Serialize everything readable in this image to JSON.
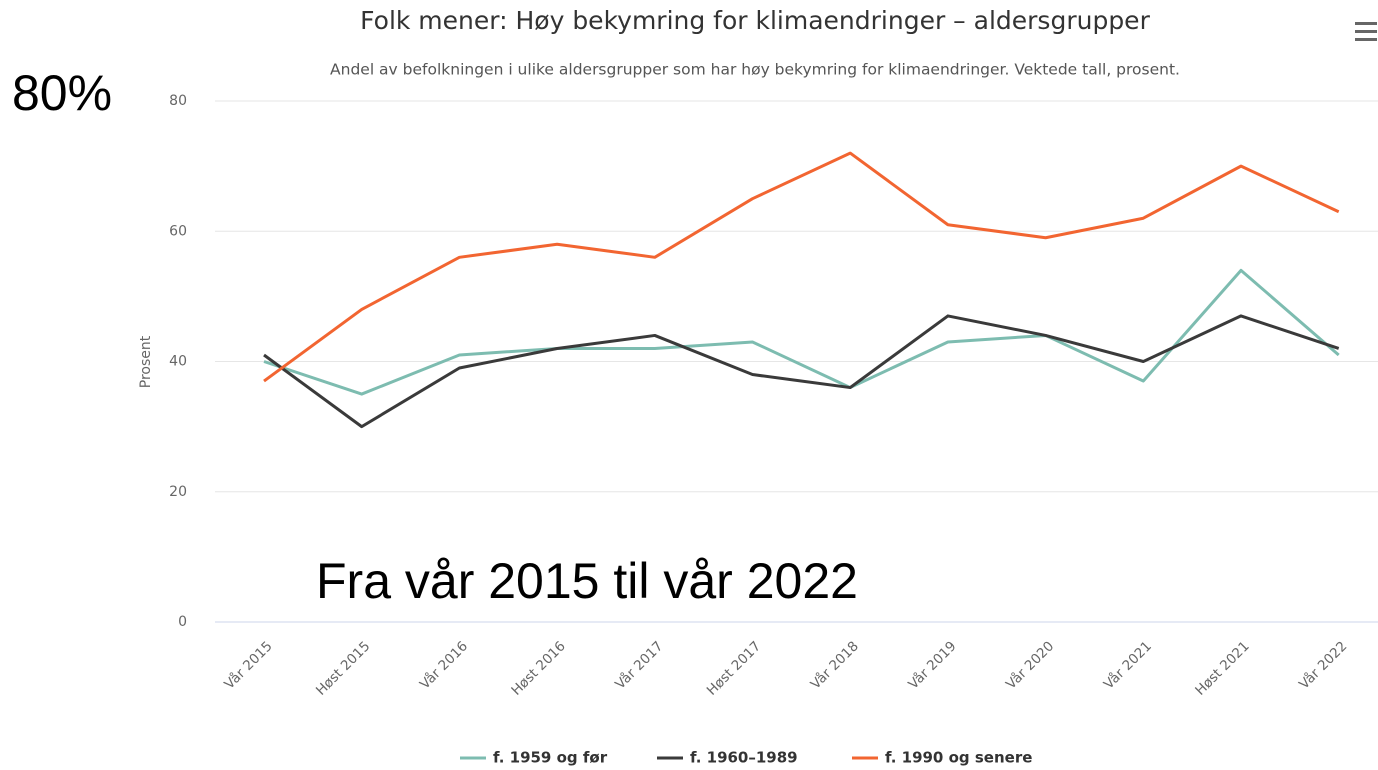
{
  "chart_data": {
    "type": "line",
    "title": "Folk mener: Høy bekymring for klimaendringer – aldersgrupper",
    "subtitle": "Andel av befolkningen i ulike aldersgrupper som har høy bekymring for klimaendringer. Vektede tall, prosent.",
    "y_label": "Prosent",
    "categories": [
      "Vår 2015",
      "Høst 2015",
      "Vår 2016",
      "Høst 2016",
      "Vår 2017",
      "Høst 2017",
      "Vår 2018",
      "Vår 2019",
      "Vår 2020",
      "Vår 2021",
      "Høst 2021",
      "Vår 2022"
    ],
    "series": [
      {
        "name": "f. 1959 og før",
        "color": "#7dbcb0",
        "values": [
          40,
          35,
          41,
          42,
          42,
          43,
          36,
          43,
          44,
          37,
          54,
          41
        ]
      },
      {
        "name": "f. 1960–1989",
        "color": "#3a3a3a",
        "values": [
          41,
          30,
          39,
          42,
          44,
          38,
          36,
          47,
          44,
          40,
          47,
          42
        ]
      },
      {
        "name": "f. 1990 og senere",
        "color": "#f26531",
        "values": [
          37,
          48,
          56,
          58,
          56,
          65,
          72,
          61,
          59,
          62,
          70,
          63
        ]
      }
    ],
    "ylim": [
      0,
      80
    ],
    "yticks": [
      0,
      20,
      40,
      60,
      80
    ],
    "grid": true,
    "legend": "bottom",
    "annotations": [
      "80%",
      "Fra vår 2015 til vår 2022"
    ]
  }
}
